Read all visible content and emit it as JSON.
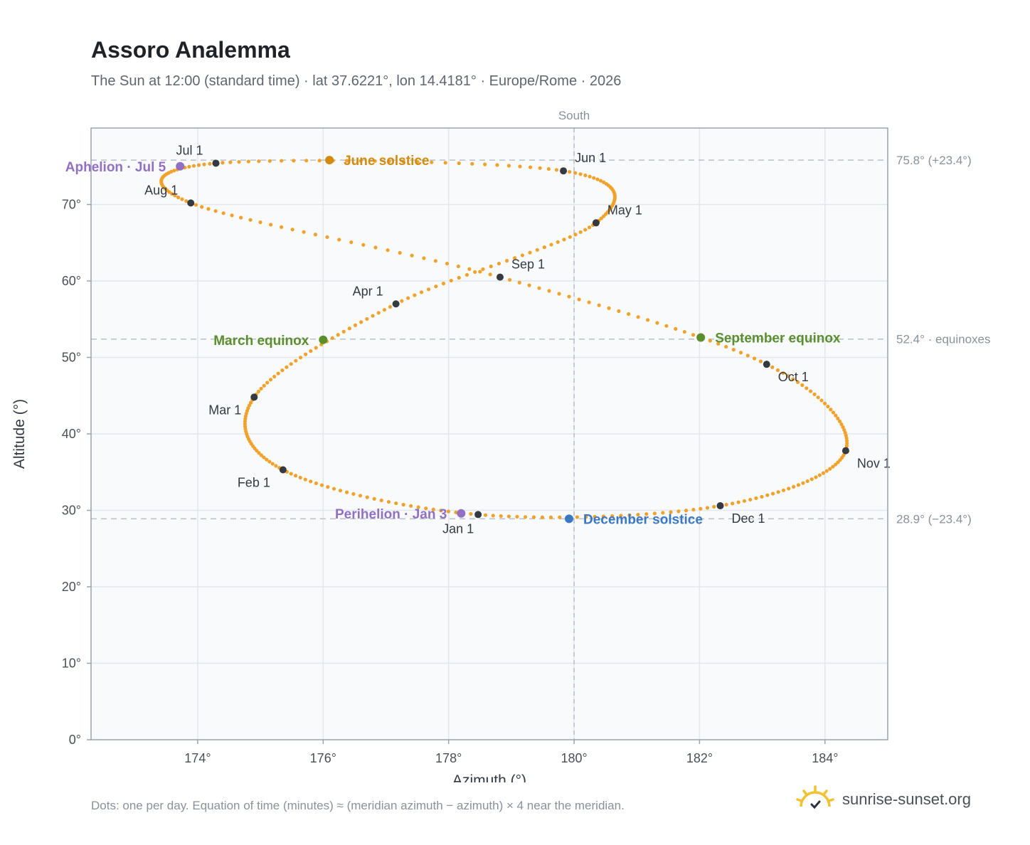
{
  "header": {
    "title": "Assoro Analemma",
    "subtitle": "The Sun at 12:00 (standard time) · lat 37.6221°, lon 14.4181° · Europe/Rome · 2026"
  },
  "footer": {
    "note": "Dots: one per day. Equation of time (minutes) ≈ (meridian azimuth − azimuth) × 4 near the meridian.",
    "brand": "sunrise-sunset.org"
  },
  "colors": {
    "curve": "#f2a22a",
    "month_marker": "#343a40",
    "equinox": "#5a8f2e",
    "june_solstice": "#d48a0a",
    "december_solstice": "#3a78c2",
    "apsis": "#9170c4",
    "grid": "#e3e7ec",
    "plot_bg": "#f8fafc",
    "frame": "#9aa3ad",
    "ref_line": "#b8c0c8"
  },
  "chart_data": {
    "type": "scatter",
    "xlabel": "Azimuth (°)",
    "ylabel": "Altitude (°)",
    "xlim": [
      172.3,
      185.0
    ],
    "ylim": [
      0,
      80
    ],
    "x_ticks": [
      174,
      176,
      178,
      180,
      182,
      184
    ],
    "x_tick_labels": [
      "174°",
      "176°",
      "178°",
      "180°",
      "182°",
      "184°"
    ],
    "y_ticks": [
      0,
      10,
      20,
      30,
      40,
      50,
      60,
      70
    ],
    "y_tick_labels": [
      "0°",
      "10°",
      "20°",
      "30°",
      "40°",
      "50°",
      "60°",
      "70°"
    ],
    "grid": true,
    "meridian": {
      "x": 180,
      "label": "South"
    },
    "reference_lines": [
      {
        "y": 75.8,
        "label": "75.8° (+23.4°)"
      },
      {
        "y": 52.4,
        "label": "52.4° · equinoxes"
      },
      {
        "y": 28.9,
        "label": "28.9° (−23.4°)"
      }
    ],
    "series": [
      {
        "name": "Dots: one per day",
        "points": [
          [
            178.47,
            29.45
          ],
          [
            175.36,
            35.3
          ],
          [
            174.9,
            44.8
          ],
          [
            177.16,
            57.0
          ],
          [
            180.35,
            67.6
          ],
          [
            179.83,
            74.4
          ],
          [
            174.29,
            75.4
          ],
          [
            173.89,
            70.2
          ],
          [
            178.82,
            60.5
          ],
          [
            183.07,
            49.1
          ],
          [
            184.33,
            37.8
          ],
          [
            182.33,
            30.6
          ]
        ]
      }
    ],
    "month_markers": [
      {
        "label": "Jan 1",
        "x": 178.47,
        "y": 29.45
      },
      {
        "label": "Feb 1",
        "x": 175.36,
        "y": 35.3
      },
      {
        "label": "Mar 1",
        "x": 174.9,
        "y": 44.8
      },
      {
        "label": "Apr 1",
        "x": 177.16,
        "y": 57.0
      },
      {
        "label": "May 1",
        "x": 180.35,
        "y": 67.6
      },
      {
        "label": "Jun 1",
        "x": 179.83,
        "y": 74.4
      },
      {
        "label": "Jul 1",
        "x": 174.29,
        "y": 75.4
      },
      {
        "label": "Aug 1",
        "x": 173.89,
        "y": 70.2
      },
      {
        "label": "Sep 1",
        "x": 178.82,
        "y": 60.5
      },
      {
        "label": "Oct 1",
        "x": 183.07,
        "y": 49.1
      },
      {
        "label": "Nov 1",
        "x": 184.33,
        "y": 37.8
      },
      {
        "label": "Dec 1",
        "x": 182.33,
        "y": 30.6
      }
    ],
    "events": [
      {
        "label": "March equinox",
        "x": 176.0,
        "y": 52.3,
        "color": "#5a8f2e",
        "side": "left"
      },
      {
        "label": "June solstice",
        "x": 176.1,
        "y": 75.8,
        "color": "#d48a0a",
        "side": "right"
      },
      {
        "label": "September equinox",
        "x": 182.02,
        "y": 52.6,
        "color": "#5a8f2e",
        "side": "right"
      },
      {
        "label": "December solstice",
        "x": 179.92,
        "y": 28.9,
        "color": "#3a78c2",
        "side": "right"
      },
      {
        "label": "Perihelion · Jan 3",
        "x": 178.2,
        "y": 29.6,
        "color": "#9170c4",
        "side": "left"
      },
      {
        "label": "Aphelion · Jul 5",
        "x": 173.72,
        "y": 75.0,
        "color": "#9170c4",
        "side": "left"
      }
    ]
  }
}
